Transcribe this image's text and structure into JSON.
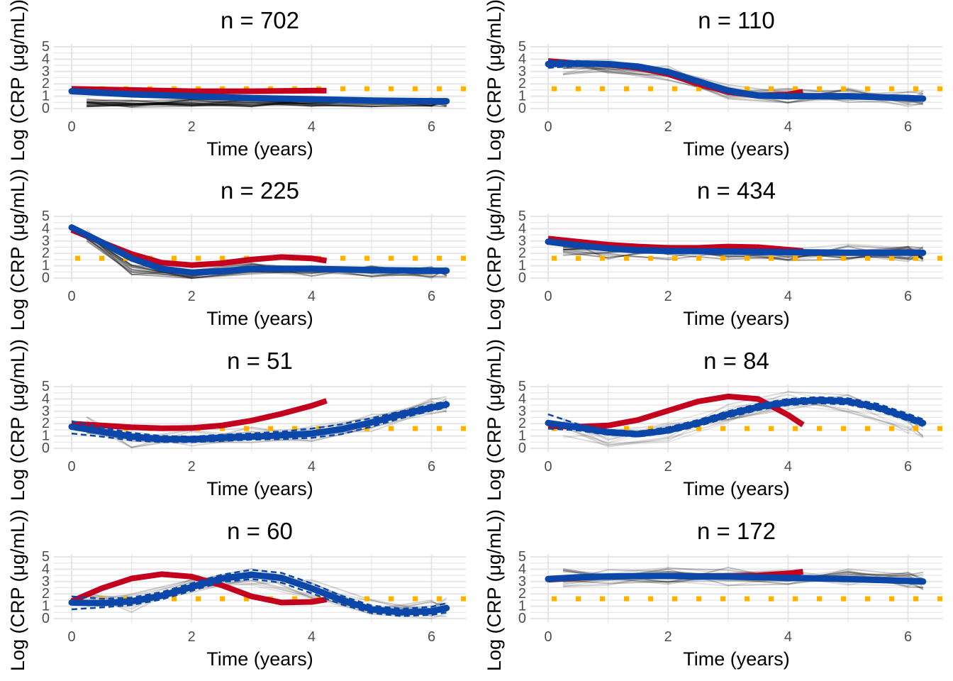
{
  "figure": {
    "xlabel": "Time (years)",
    "ylabel": "Log (CRP (μg/mL))",
    "x_ticks": [
      "0",
      "2",
      "4",
      "6"
    ],
    "y_ticks": [
      "0",
      "1",
      "2",
      "3",
      "4",
      "5"
    ],
    "xlim": [
      -0.3,
      6.6
    ],
    "ylim": [
      -0.3,
      5.2
    ],
    "threshold": 1.6,
    "colors": {
      "observed_mean": "#c4001f",
      "fitted": "#0a47a8",
      "threshold": "#ffb000",
      "individual": "#000000",
      "grid": "#e5e5e5"
    }
  },
  "chart_data": [
    {
      "type": "line",
      "title": "n = 702",
      "xlabel": "Time (years)",
      "ylabel": "Log (CRP (μg/mL))",
      "xlim": [
        -0.3,
        6.6
      ],
      "ylim": [
        -0.3,
        5.2
      ],
      "grid": true,
      "series": [
        {
          "role": "observed_mean",
          "x": [
            0,
            1,
            2,
            3,
            4,
            4.25
          ],
          "y": [
            1.6,
            1.5,
            1.4,
            1.4,
            1.45,
            1.45
          ]
        },
        {
          "role": "fitted",
          "x": [
            0,
            1,
            2,
            3,
            4,
            5,
            6,
            6.25
          ],
          "y": [
            1.4,
            1.15,
            1.0,
            0.85,
            0.75,
            0.65,
            0.6,
            0.6
          ]
        }
      ],
      "individuals": {
        "n_lines": 16,
        "opacity": 0.35,
        "x": [
          0.25,
          1,
          2,
          3,
          4,
          5,
          6,
          6.25
        ],
        "base": [
          0.5,
          0.4,
          0.5,
          0.5,
          0.5,
          0.5,
          0.5,
          0.5
        ],
        "spread": 0.7
      }
    },
    {
      "type": "line",
      "title": "n = 110",
      "xlabel": "Time (years)",
      "ylabel": "Log (CRP (μg/mL))",
      "xlim": [
        -0.3,
        6.6
      ],
      "ylim": [
        -0.3,
        5.2
      ],
      "grid": true,
      "series": [
        {
          "role": "observed_mean",
          "x": [
            0,
            0.5,
            1,
            1.5,
            2,
            2.5,
            3,
            3.5,
            4,
            4.25
          ],
          "y": [
            3.85,
            3.65,
            3.55,
            3.3,
            2.8,
            2.0,
            1.35,
            1.05,
            1.15,
            1.35
          ]
        },
        {
          "role": "fitted",
          "x": [
            0,
            0.5,
            1,
            1.5,
            2,
            2.5,
            3,
            3.5,
            4,
            5,
            6,
            6.25
          ],
          "y": [
            3.6,
            3.65,
            3.6,
            3.4,
            2.95,
            2.2,
            1.45,
            1.05,
            1.0,
            1.0,
            0.85,
            0.8
          ]
        },
        {
          "role": "ci_upper",
          "x": [
            0,
            0.5,
            1,
            1.5,
            2,
            2.5,
            3,
            3.5,
            4,
            5,
            6,
            6.25
          ],
          "y": [
            3.9,
            3.85,
            3.75,
            3.55,
            3.1,
            2.35,
            1.6,
            1.2,
            1.15,
            1.15,
            1.0,
            0.95
          ]
        },
        {
          "role": "ci_lower",
          "x": [
            0,
            0.5,
            1,
            1.5,
            2,
            2.5,
            3,
            3.5,
            4,
            5,
            6,
            6.25
          ],
          "y": [
            3.3,
            3.45,
            3.45,
            3.25,
            2.8,
            2.05,
            1.3,
            0.9,
            0.85,
            0.85,
            0.7,
            0.65
          ]
        }
      ],
      "individuals": {
        "n_lines": 14,
        "opacity": 0.15,
        "x": [
          0.25,
          1,
          2,
          3,
          4,
          5,
          6,
          6.25
        ],
        "base": [
          3.4,
          3.5,
          2.8,
          1.3,
          1.0,
          1.1,
          0.8,
          0.8
        ],
        "spread": 1.3
      }
    },
    {
      "type": "line",
      "title": "n = 225",
      "xlabel": "Time (years)",
      "ylabel": "Log (CRP (μg/mL))",
      "xlim": [
        -0.3,
        6.6
      ],
      "ylim": [
        -0.3,
        5.2
      ],
      "grid": true,
      "series": [
        {
          "role": "observed_mean",
          "x": [
            0,
            0.5,
            1,
            1.5,
            2,
            2.5,
            3,
            3.5,
            4,
            4.25
          ],
          "y": [
            3.9,
            2.9,
            1.95,
            1.25,
            1.05,
            1.2,
            1.5,
            1.7,
            1.6,
            1.4
          ]
        },
        {
          "role": "fitted",
          "x": [
            0,
            0.5,
            1,
            1.5,
            2,
            2.5,
            3,
            4,
            5,
            6,
            6.25
          ],
          "y": [
            4.1,
            2.9,
            1.6,
            0.75,
            0.45,
            0.55,
            0.75,
            0.75,
            0.65,
            0.6,
            0.6
          ]
        }
      ],
      "individuals": {
        "n_lines": 14,
        "opacity": 0.3,
        "x": [
          0.25,
          1,
          2,
          3,
          4,
          5,
          6,
          6.25
        ],
        "base": [
          3.5,
          0.6,
          0.3,
          0.7,
          0.6,
          0.6,
          0.5,
          0.5
        ],
        "spread": 1.0
      }
    },
    {
      "type": "line",
      "title": "n = 434",
      "xlabel": "Time (years)",
      "ylabel": "Log (CRP (μg/mL))",
      "xlim": [
        -0.3,
        6.6
      ],
      "ylim": [
        -0.3,
        5.2
      ],
      "grid": true,
      "series": [
        {
          "role": "observed_mean",
          "x": [
            0,
            0.5,
            1,
            1.5,
            2,
            2.5,
            3,
            3.5,
            4,
            4.25
          ],
          "y": [
            3.2,
            2.95,
            2.7,
            2.55,
            2.45,
            2.45,
            2.55,
            2.5,
            2.3,
            2.2
          ]
        },
        {
          "role": "fitted",
          "x": [
            0,
            0.5,
            1,
            1.5,
            2,
            3,
            4,
            5,
            6,
            6.25
          ],
          "y": [
            2.95,
            2.65,
            2.4,
            2.25,
            2.2,
            2.15,
            2.1,
            2.05,
            2.05,
            2.05
          ]
        }
      ],
      "individuals": {
        "n_lines": 18,
        "opacity": 0.25,
        "x": [
          0.25,
          1,
          2,
          3,
          4,
          5,
          6,
          6.25
        ],
        "base": [
          2.5,
          2.2,
          2.0,
          2.1,
          2.0,
          2.1,
          2.0,
          2.0
        ],
        "spread": 1.3
      }
    },
    {
      "type": "line",
      "title": "n = 51",
      "xlabel": "Time (years)",
      "ylabel": "Log (CRP (μg/mL))",
      "xlim": [
        -0.3,
        6.6
      ],
      "ylim": [
        -0.3,
        5.2
      ],
      "grid": true,
      "series": [
        {
          "role": "observed_mean",
          "x": [
            0,
            0.5,
            1,
            1.5,
            2,
            2.5,
            3,
            3.5,
            4,
            4.25
          ],
          "y": [
            2.0,
            1.85,
            1.7,
            1.62,
            1.65,
            1.85,
            2.25,
            2.8,
            3.45,
            3.85
          ]
        },
        {
          "role": "fitted",
          "x": [
            0,
            0.5,
            1,
            1.5,
            2,
            2.5,
            3,
            3.5,
            4,
            4.5,
            5,
            5.5,
            6,
            6.25
          ],
          "y": [
            1.75,
            1.35,
            0.95,
            0.75,
            0.75,
            0.85,
            0.95,
            1.05,
            1.2,
            1.55,
            2.1,
            2.75,
            3.3,
            3.55
          ]
        },
        {
          "role": "ci_upper",
          "x": [
            0,
            0.5,
            1,
            1.5,
            2,
            2.5,
            3,
            3.5,
            4,
            4.5,
            5,
            5.5,
            6,
            6.25
          ],
          "y": [
            2.2,
            1.7,
            1.25,
            1.0,
            0.95,
            1.1,
            1.2,
            1.35,
            1.6,
            1.95,
            2.45,
            3.0,
            3.55,
            3.8
          ]
        },
        {
          "role": "ci_lower",
          "x": [
            0,
            0.5,
            1,
            1.5,
            2,
            2.5,
            3,
            3.5,
            4,
            4.5,
            5,
            5.5,
            6,
            6.25
          ],
          "y": [
            1.2,
            0.95,
            0.65,
            0.5,
            0.5,
            0.6,
            0.7,
            0.75,
            0.85,
            1.15,
            1.75,
            2.45,
            3.05,
            3.3
          ]
        }
      ],
      "individuals": {
        "n_lines": 10,
        "opacity": 0.12,
        "x": [
          0.25,
          1,
          2,
          3,
          4,
          5,
          6,
          6.25
        ],
        "base": [
          1.8,
          0.7,
          0.8,
          1.0,
          1.3,
          2.1,
          3.5,
          3.6
        ],
        "spread": 1.5
      }
    },
    {
      "type": "line",
      "title": "n = 84",
      "xlabel": "Time (years)",
      "ylabel": "Log (CRP (μg/mL))",
      "xlim": [
        -0.3,
        6.6
      ],
      "ylim": [
        -0.3,
        5.2
      ],
      "grid": true,
      "series": [
        {
          "role": "observed_mean",
          "x": [
            0,
            0.5,
            1,
            1.5,
            2,
            2.5,
            3,
            3.5,
            4,
            4.25
          ],
          "y": [
            1.8,
            1.75,
            1.85,
            2.3,
            3.05,
            3.8,
            4.2,
            4.0,
            2.7,
            1.9
          ]
        },
        {
          "role": "fitted",
          "x": [
            0,
            0.5,
            1,
            1.5,
            2,
            2.5,
            3,
            3.5,
            4,
            4.5,
            5,
            5.5,
            6,
            6.25
          ],
          "y": [
            2.05,
            1.7,
            1.3,
            1.15,
            1.45,
            2.05,
            2.75,
            3.35,
            3.75,
            3.9,
            3.8,
            3.3,
            2.5,
            2.05
          ]
        },
        {
          "role": "ci_upper",
          "x": [
            0,
            0.5,
            1,
            1.5,
            2,
            2.5,
            3,
            3.5,
            4,
            4.5,
            5,
            5.5,
            6,
            6.25
          ],
          "y": [
            2.75,
            1.95,
            1.5,
            1.35,
            1.7,
            2.3,
            3.0,
            3.6,
            4.0,
            4.15,
            4.05,
            3.6,
            2.8,
            2.35
          ]
        },
        {
          "role": "ci_lower",
          "x": [
            0,
            0.5,
            1,
            1.5,
            2,
            2.5,
            3,
            3.5,
            4,
            4.5,
            5,
            5.5,
            6,
            6.25
          ],
          "y": [
            1.6,
            1.45,
            1.1,
            0.95,
            1.25,
            1.8,
            2.5,
            3.1,
            3.5,
            3.65,
            3.55,
            3.05,
            2.25,
            1.8
          ]
        }
      ],
      "individuals": {
        "n_lines": 12,
        "opacity": 0.12,
        "x": [
          0.25,
          1,
          2,
          3,
          4,
          5,
          6,
          6.25
        ],
        "base": [
          1.6,
          0.8,
          1.3,
          2.9,
          3.9,
          3.6,
          2.0,
          1.6
        ],
        "spread": 1.6
      }
    },
    {
      "type": "line",
      "title": "n = 60",
      "xlabel": "Time (years)",
      "ylabel": "Log (CRP (μg/mL))",
      "xlim": [
        -0.3,
        6.6
      ],
      "ylim": [
        -0.3,
        5.2
      ],
      "grid": true,
      "series": [
        {
          "role": "observed_mean",
          "x": [
            0,
            0.5,
            1,
            1.5,
            2,
            2.5,
            3,
            3.5,
            4,
            4.25
          ],
          "y": [
            1.4,
            2.45,
            3.25,
            3.6,
            3.4,
            2.7,
            1.8,
            1.3,
            1.35,
            1.55
          ]
        },
        {
          "role": "fitted",
          "x": [
            0,
            0.5,
            1,
            1.5,
            2,
            2.5,
            3,
            3.5,
            4,
            4.5,
            5,
            5.5,
            6,
            6.25
          ],
          "y": [
            1.3,
            1.25,
            1.4,
            1.85,
            2.55,
            3.25,
            3.55,
            3.3,
            2.45,
            1.5,
            0.75,
            0.5,
            0.6,
            0.85
          ]
        },
        {
          "role": "ci_upper",
          "x": [
            0,
            0.5,
            1,
            1.5,
            2,
            2.5,
            3,
            3.5,
            4,
            4.5,
            5,
            5.5,
            6,
            6.25
          ],
          "y": [
            1.8,
            1.6,
            1.7,
            2.15,
            2.85,
            3.55,
            3.95,
            3.7,
            2.85,
            1.85,
            1.05,
            0.8,
            0.95,
            1.25
          ]
        },
        {
          "role": "ci_lower",
          "x": [
            0,
            0.5,
            1,
            1.5,
            2,
            2.5,
            3,
            3.5,
            4,
            4.5,
            5,
            5.5,
            6,
            6.25
          ],
          "y": [
            0.75,
            0.9,
            1.1,
            1.55,
            2.25,
            2.95,
            3.2,
            2.9,
            2.05,
            1.15,
            0.45,
            0.2,
            0.3,
            0.5
          ]
        }
      ],
      "individuals": {
        "n_lines": 10,
        "opacity": 0.12,
        "x": [
          0.25,
          1,
          2,
          3,
          4,
          5,
          6,
          6.25
        ],
        "base": [
          1.3,
          1.2,
          2.5,
          3.5,
          2.4,
          0.8,
          0.7,
          0.9
        ],
        "spread": 1.6
      }
    },
    {
      "type": "line",
      "title": "n = 172",
      "xlabel": "Time (years)",
      "ylabel": "Log (CRP (μg/mL))",
      "xlim": [
        -0.3,
        6.6
      ],
      "ylim": [
        -0.3,
        5.2
      ],
      "grid": true,
      "series": [
        {
          "role": "observed_mean",
          "x": [
            0,
            0.5,
            1,
            1.5,
            2,
            2.5,
            3,
            3.5,
            4,
            4.25
          ],
          "y": [
            3.15,
            3.3,
            3.4,
            3.45,
            3.45,
            3.45,
            3.45,
            3.5,
            3.65,
            3.8
          ]
        },
        {
          "role": "fitted",
          "x": [
            0,
            0.5,
            1,
            1.5,
            2,
            2.5,
            3,
            3.5,
            4,
            5,
            6,
            6.25
          ],
          "y": [
            3.2,
            3.35,
            3.4,
            3.45,
            3.45,
            3.4,
            3.4,
            3.35,
            3.3,
            3.2,
            3.05,
            3.0
          ]
        }
      ],
      "individuals": {
        "n_lines": 16,
        "opacity": 0.2,
        "x": [
          0.25,
          1,
          2,
          3,
          4,
          5,
          6,
          6.25
        ],
        "base": [
          3.3,
          3.4,
          3.4,
          3.4,
          3.3,
          3.3,
          3.1,
          3.0
        ],
        "spread": 1.5
      }
    }
  ]
}
